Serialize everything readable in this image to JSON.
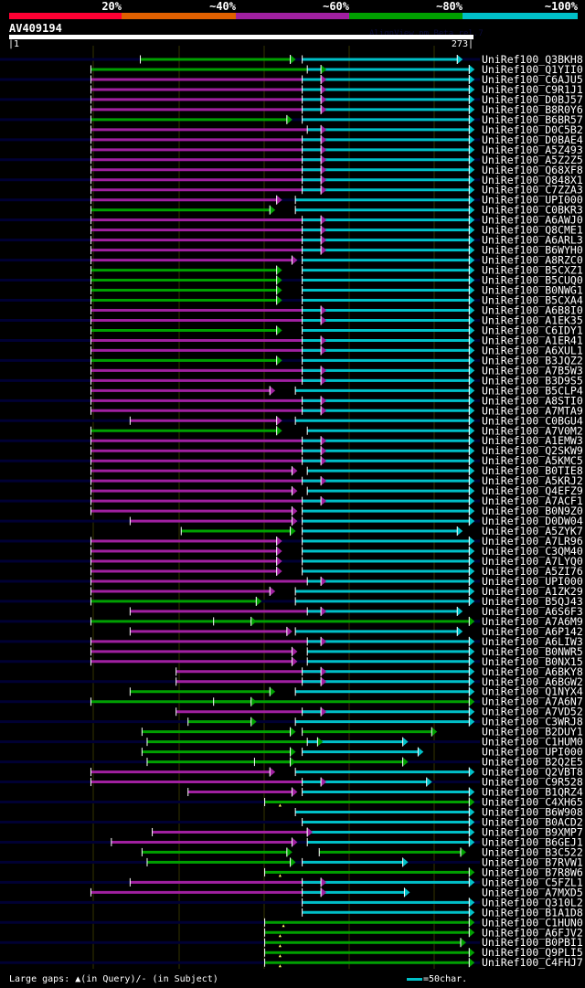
{
  "header": {
    "scale_labels": [
      "20%",
      "~40%",
      "~60%",
      "~80%",
      "~100%"
    ],
    "scale_colors": [
      "#ff0033",
      "#e06000",
      "#a020a0",
      "#00a000",
      "#00c0c8"
    ],
    "query_name": "AV409194",
    "credit": "AlignView.pm Beta rel.7",
    "query_start": "|1",
    "query_end": "273|",
    "query_length": 273
  },
  "colors": {
    "M": "#a020a0",
    "G": "#00a000",
    "C": "#00c0c8",
    "track": "#000033",
    "grid": "#333300",
    "gap_marker": "#ffff66"
  },
  "rows": [
    {
      "id": "UniRef100_Q3BKH8",
      "hsps": [
        [
          78,
          166,
          "G"
        ],
        [
          173,
          264,
          "C"
        ]
      ]
    },
    {
      "id": "UniRef100_Q1YII0",
      "hsps": [
        [
          49,
          184,
          "G"
        ],
        [
          176,
          271,
          "C"
        ]
      ]
    },
    {
      "id": "UniRef100_C6AJU5",
      "hsps": [
        [
          49,
          184,
          "M"
        ],
        [
          173,
          271,
          "C"
        ]
      ]
    },
    {
      "id": "UniRef100_C9R1J1",
      "hsps": [
        [
          49,
          184,
          "M"
        ],
        [
          173,
          271,
          "C"
        ]
      ]
    },
    {
      "id": "UniRef100_D0BJ57",
      "hsps": [
        [
          49,
          184,
          "M"
        ],
        [
          173,
          271,
          "C"
        ]
      ]
    },
    {
      "id": "UniRef100_B8R0Y6",
      "hsps": [
        [
          49,
          184,
          "M"
        ],
        [
          173,
          271,
          "C"
        ]
      ]
    },
    {
      "id": "UniRef100_B6BR57",
      "hsps": [
        [
          49,
          164,
          "G"
        ],
        [
          173,
          271,
          "C"
        ]
      ]
    },
    {
      "id": "UniRef100_D0C5B2",
      "hsps": [
        [
          49,
          184,
          "M"
        ],
        [
          176,
          271,
          "C"
        ]
      ]
    },
    {
      "id": "UniRef100_D0BAE4",
      "hsps": [
        [
          49,
          184,
          "M"
        ],
        [
          173,
          271,
          "C"
        ]
      ]
    },
    {
      "id": "UniRef100_A5Z493",
      "hsps": [
        [
          49,
          184,
          "M"
        ],
        [
          173,
          271,
          "C"
        ]
      ]
    },
    {
      "id": "UniRef100_A5Z2Z5",
      "hsps": [
        [
          49,
          184,
          "M"
        ],
        [
          173,
          271,
          "C"
        ]
      ]
    },
    {
      "id": "UniRef100_Q68XF8",
      "hsps": [
        [
          49,
          184,
          "M"
        ],
        [
          173,
          271,
          "C"
        ]
      ]
    },
    {
      "id": "UniRef100_Q848X1",
      "hsps": [
        [
          49,
          184,
          "M"
        ],
        [
          173,
          271,
          "C"
        ]
      ]
    },
    {
      "id": "UniRef100_C7ZZA3",
      "hsps": [
        [
          49,
          184,
          "M"
        ],
        [
          173,
          271,
          "C"
        ]
      ]
    },
    {
      "id": "UniRef100_UPI000..",
      "hsps": [
        [
          49,
          158,
          "M"
        ],
        [
          169,
          271,
          "C"
        ]
      ]
    },
    {
      "id": "UniRef100_C0BKR3",
      "hsps": [
        [
          49,
          154,
          "G"
        ],
        [
          169,
          271,
          "C"
        ]
      ]
    },
    {
      "id": "UniRef100_A6AWJ0",
      "hsps": [
        [
          49,
          184,
          "M"
        ],
        [
          173,
          271,
          "C"
        ]
      ]
    },
    {
      "id": "UniRef100_Q8CME1",
      "hsps": [
        [
          49,
          184,
          "M"
        ],
        [
          173,
          271,
          "C"
        ]
      ]
    },
    {
      "id": "UniRef100_A6ARL3",
      "hsps": [
        [
          49,
          184,
          "M"
        ],
        [
          173,
          271,
          "C"
        ]
      ]
    },
    {
      "id": "UniRef100_B6WYH0",
      "hsps": [
        [
          49,
          184,
          "M"
        ],
        [
          173,
          271,
          "C"
        ]
      ]
    },
    {
      "id": "UniRef100_A8RZC0",
      "hsps": [
        [
          49,
          167,
          "M"
        ],
        [
          173,
          271,
          "C"
        ]
      ]
    },
    {
      "id": "UniRef100_B5CXZ1",
      "hsps": [
        [
          49,
          158,
          "G"
        ],
        [
          173,
          271,
          "C"
        ]
      ]
    },
    {
      "id": "UniRef100_B5CUQ0",
      "hsps": [
        [
          49,
          158,
          "G"
        ],
        [
          173,
          271,
          "C"
        ]
      ]
    },
    {
      "id": "UniRef100_B0NWG1",
      "hsps": [
        [
          49,
          158,
          "G"
        ],
        [
          173,
          271,
          "C"
        ]
      ]
    },
    {
      "id": "UniRef100_B5CXA4",
      "hsps": [
        [
          49,
          158,
          "G"
        ],
        [
          173,
          271,
          "C"
        ]
      ]
    },
    {
      "id": "UniRef100_A6B8I0",
      "hsps": [
        [
          49,
          184,
          "M"
        ],
        [
          173,
          271,
          "C"
        ]
      ]
    },
    {
      "id": "UniRef100_A1EK35",
      "hsps": [
        [
          49,
          184,
          "M"
        ],
        [
          173,
          271,
          "C"
        ]
      ]
    },
    {
      "id": "UniRef100_C6IDY1",
      "hsps": [
        [
          49,
          158,
          "G"
        ],
        [
          173,
          271,
          "C"
        ]
      ]
    },
    {
      "id": "UniRef100_A1ER41",
      "hsps": [
        [
          49,
          184,
          "M"
        ],
        [
          173,
          271,
          "C"
        ]
      ]
    },
    {
      "id": "UniRef100_A6XUL1",
      "hsps": [
        [
          49,
          184,
          "M"
        ],
        [
          173,
          271,
          "C"
        ]
      ]
    },
    {
      "id": "UniRef100_B3JQZ2",
      "hsps": [
        [
          49,
          158,
          "G"
        ],
        [
          173,
          271,
          "C"
        ]
      ]
    },
    {
      "id": "UniRef100_A7B5W3",
      "hsps": [
        [
          49,
          184,
          "M"
        ],
        [
          173,
          271,
          "C"
        ]
      ]
    },
    {
      "id": "UniRef100_B3D9S5",
      "hsps": [
        [
          49,
          184,
          "M"
        ],
        [
          173,
          271,
          "C"
        ]
      ]
    },
    {
      "id": "UniRef100_B5CLP4",
      "hsps": [
        [
          49,
          154,
          "M"
        ],
        [
          169,
          271,
          "C"
        ]
      ]
    },
    {
      "id": "UniRef100_A8STI0",
      "hsps": [
        [
          49,
          184,
          "M"
        ],
        [
          173,
          271,
          "C"
        ]
      ]
    },
    {
      "id": "UniRef100_A7MTA9",
      "hsps": [
        [
          49,
          184,
          "M"
        ],
        [
          173,
          271,
          "C"
        ]
      ]
    },
    {
      "id": "UniRef100_C0BGU4",
      "hsps": [
        [
          72,
          158,
          "M"
        ],
        [
          169,
          271,
          "C"
        ]
      ]
    },
    {
      "id": "UniRef100_A7V0M2",
      "hsps": [
        [
          49,
          158,
          "G"
        ],
        [
          176,
          271,
          "C"
        ]
      ]
    },
    {
      "id": "UniRef100_A1EMW3",
      "hsps": [
        [
          49,
          184,
          "M"
        ],
        [
          173,
          271,
          "C"
        ]
      ]
    },
    {
      "id": "UniRef100_Q2SKW9",
      "hsps": [
        [
          49,
          184,
          "M"
        ],
        [
          173,
          271,
          "C"
        ]
      ]
    },
    {
      "id": "UniRef100_A5KMC5",
      "hsps": [
        [
          49,
          184,
          "M"
        ],
        [
          173,
          271,
          "C"
        ]
      ]
    },
    {
      "id": "UniRef100_B0TIE8",
      "hsps": [
        [
          49,
          167,
          "M"
        ],
        [
          176,
          271,
          "C"
        ]
      ]
    },
    {
      "id": "UniRef100_A5KRJ2",
      "hsps": [
        [
          49,
          184,
          "M"
        ],
        [
          173,
          271,
          "C"
        ]
      ]
    },
    {
      "id": "UniRef100_Q4EFZ9",
      "hsps": [
        [
          49,
          167,
          "M"
        ],
        [
          176,
          271,
          "C"
        ]
      ]
    },
    {
      "id": "UniRef100_A7ACF1",
      "hsps": [
        [
          49,
          184,
          "M"
        ],
        [
          173,
          271,
          "C"
        ]
      ]
    },
    {
      "id": "UniRef100_B0N9Z0",
      "hsps": [
        [
          49,
          167,
          "M"
        ],
        [
          173,
          271,
          "C"
        ]
      ]
    },
    {
      "id": "UniRef100_D0DW04",
      "hsps": [
        [
          72,
          167,
          "M"
        ],
        [
          173,
          271,
          "C"
        ]
      ]
    },
    {
      "id": "UniRef100_A5ZYK7",
      "hsps": [
        [
          102,
          166,
          "G"
        ],
        [
          173,
          264,
          "C"
        ]
      ]
    },
    {
      "id": "UniRef100_A7LR96",
      "hsps": [
        [
          49,
          158,
          "M"
        ],
        [
          173,
          271,
          "C"
        ]
      ]
    },
    {
      "id": "UniRef100_C3QM40",
      "hsps": [
        [
          49,
          158,
          "M"
        ],
        [
          173,
          271,
          "C"
        ]
      ]
    },
    {
      "id": "UniRef100_A7LYQ0",
      "hsps": [
        [
          49,
          158,
          "M"
        ],
        [
          173,
          271,
          "C"
        ]
      ]
    },
    {
      "id": "UniRef100_A5ZI76",
      "hsps": [
        [
          49,
          158,
          "M"
        ],
        [
          173,
          271,
          "C"
        ]
      ]
    },
    {
      "id": "UniRef100_UPI000..",
      "hsps": [
        [
          49,
          184,
          "M"
        ],
        [
          176,
          271,
          "C"
        ]
      ]
    },
    {
      "id": "UniRef100_A1ZK29",
      "hsps": [
        [
          49,
          154,
          "M"
        ],
        [
          169,
          271,
          "C"
        ]
      ]
    },
    {
      "id": "UniRef100_B5QJ43",
      "hsps": [
        [
          49,
          146,
          "G"
        ],
        [
          169,
          271,
          "C"
        ]
      ]
    },
    {
      "id": "UniRef100_A6S6F3",
      "hsps": [
        [
          72,
          184,
          "M"
        ],
        [
          176,
          264,
          "C"
        ]
      ]
    },
    {
      "id": "UniRef100_A7A6M9",
      "hsps": [
        [
          49,
          143,
          "G"
        ],
        [
          121,
          271,
          "G"
        ]
      ]
    },
    {
      "id": "UniRef100_A6P142",
      "hsps": [
        [
          72,
          164,
          "M"
        ],
        [
          169,
          264,
          "C"
        ]
      ]
    },
    {
      "id": "UniRef100_A6LIW3",
      "hsps": [
        [
          49,
          184,
          "M"
        ],
        [
          176,
          271,
          "C"
        ]
      ]
    },
    {
      "id": "UniRef100_B0NWR5",
      "hsps": [
        [
          49,
          167,
          "M"
        ],
        [
          176,
          271,
          "C"
        ]
      ]
    },
    {
      "id": "UniRef100_B0NX15",
      "hsps": [
        [
          49,
          167,
          "M"
        ],
        [
          176,
          271,
          "C"
        ]
      ]
    },
    {
      "id": "UniRef100_A6BKY8",
      "hsps": [
        [
          99,
          184,
          "M"
        ],
        [
          173,
          271,
          "C"
        ]
      ]
    },
    {
      "id": "UniRef100_A6BGW2",
      "hsps": [
        [
          99,
          184,
          "M"
        ],
        [
          173,
          271,
          "C"
        ]
      ]
    },
    {
      "id": "UniRef100_Q1NYX4",
      "hsps": [
        [
          72,
          154,
          "G"
        ],
        [
          169,
          271,
          "C"
        ]
      ]
    },
    {
      "id": "UniRef100_A7A6N7",
      "hsps": [
        [
          49,
          143,
          "G"
        ],
        [
          121,
          271,
          "G"
        ]
      ]
    },
    {
      "id": "UniRef100_A7VD52",
      "hsps": [
        [
          99,
          184,
          "M"
        ],
        [
          173,
          271,
          "C"
        ]
      ]
    },
    {
      "id": "UniRef100_C3WRJ8",
      "hsps": [
        [
          106,
          143,
          "G"
        ],
        [
          169,
          271,
          "C"
        ]
      ]
    },
    {
      "id": "UniRef100_B2DUY1",
      "hsps": [
        [
          79,
          166,
          "G"
        ],
        [
          173,
          249,
          "G"
        ]
      ]
    },
    {
      "id": "UniRef100_C1HUM0",
      "hsps": [
        [
          82,
          182,
          "G"
        ],
        [
          176,
          232,
          "C"
        ]
      ]
    },
    {
      "id": "UniRef100_UPI000..",
      "hsps": [
        [
          79,
          166,
          "G"
        ],
        [
          173,
          241,
          "C"
        ]
      ]
    },
    {
      "id": "UniRef100_B2Q2E5",
      "hsps": [
        [
          82,
          166,
          "G"
        ],
        [
          145,
          232,
          "G"
        ]
      ]
    },
    {
      "id": "UniRef100_Q2VBT8",
      "hsps": [
        [
          49,
          154,
          "M"
        ],
        [
          169,
          271,
          "C"
        ]
      ]
    },
    {
      "id": "UniRef100_C9R528",
      "hsps": [
        [
          49,
          184,
          "M"
        ],
        [
          173,
          246,
          "C"
        ]
      ]
    },
    {
      "id": "UniRef100_B1QRZ4",
      "hsps": [
        [
          106,
          167,
          "M"
        ],
        [
          173,
          271,
          "C"
        ]
      ]
    },
    {
      "id": "UniRef100_C4XH65",
      "hsps": [
        [
          151,
          271,
          "G"
        ]
      ],
      "query_gaps": [
        160
      ]
    },
    {
      "id": "UniRef100_B6W908",
      "hsps": [
        [
          169,
          271,
          "C"
        ]
      ]
    },
    {
      "id": "UniRef100_B0ACD2",
      "hsps": [
        [
          173,
          271,
          "C"
        ]
      ]
    },
    {
      "id": "UniRef100_B9XMP7",
      "hsps": [
        [
          85,
          176,
          "M"
        ],
        [
          176,
          271,
          "C"
        ]
      ]
    },
    {
      "id": "UniRef100_B6GEJ1",
      "hsps": [
        [
          61,
          167,
          "M"
        ],
        [
          176,
          271,
          "C"
        ]
      ]
    },
    {
      "id": "UniRef100_B3C522",
      "hsps": [
        [
          79,
          164,
          "G"
        ],
        [
          183,
          266,
          "G"
        ]
      ]
    },
    {
      "id": "UniRef100_B7RVW1",
      "hsps": [
        [
          82,
          166,
          "G"
        ],
        [
          173,
          232,
          "C"
        ]
      ]
    },
    {
      "id": "UniRef100_B7R8W6",
      "hsps": [
        [
          151,
          271,
          "G"
        ]
      ],
      "query_gaps": [
        160
      ]
    },
    {
      "id": "UniRef100_C5FZL1",
      "hsps": [
        [
          72,
          184,
          "M"
        ],
        [
          173,
          271,
          "C"
        ]
      ]
    },
    {
      "id": "UniRef100_A7MXD5",
      "hsps": [
        [
          49,
          184,
          "M"
        ],
        [
          173,
          233,
          "C"
        ]
      ]
    },
    {
      "id": "UniRef100_Q310L2",
      "hsps": [
        [
          173,
          271,
          "C"
        ]
      ]
    },
    {
      "id": "UniRef100_B1A1D8",
      "hsps": [
        [
          173,
          271,
          "C"
        ]
      ]
    },
    {
      "id": "UniRef100_C1HUN0",
      "hsps": [
        [
          151,
          271,
          "G"
        ]
      ],
      "query_gaps": [
        162
      ]
    },
    {
      "id": "UniRef100_A6FJV2",
      "hsps": [
        [
          151,
          271,
          "G"
        ]
      ],
      "query_gaps": [
        160
      ]
    },
    {
      "id": "UniRef100_B0PBI1",
      "hsps": [
        [
          151,
          266,
          "G"
        ]
      ],
      "query_gaps": [
        160
      ]
    },
    {
      "id": "UniRef100_Q9PLI5",
      "hsps": [
        [
          151,
          271,
          "G"
        ]
      ],
      "query_gaps": [
        160
      ]
    },
    {
      "id": "UniRef100_C4FHJ7",
      "hsps": [
        [
          151,
          271,
          "G"
        ]
      ],
      "query_gaps": [
        160
      ]
    }
  ],
  "footer": {
    "gaps_label": "Large gaps: ▲(in Query)/- (in Subject)",
    "scale_legend": "=50char."
  }
}
